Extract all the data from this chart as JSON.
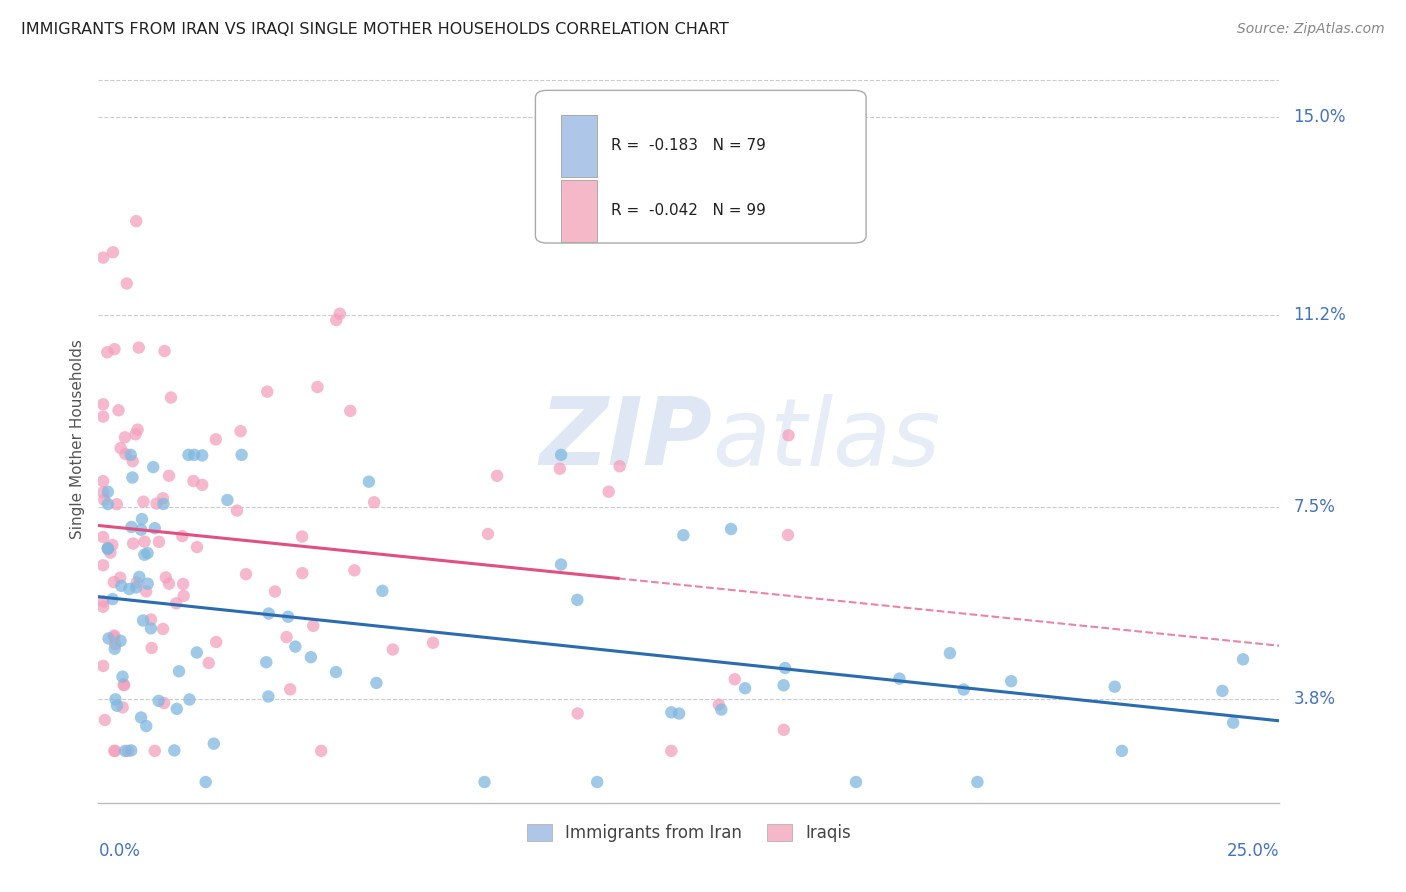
{
  "title": "IMMIGRANTS FROM IRAN VS IRAQI SINGLE MOTHER HOUSEHOLDS CORRELATION CHART",
  "source": "Source: ZipAtlas.com",
  "ylabel": "Single Mother Households",
  "x_min": 0.0,
  "x_max": 0.25,
  "y_min": 0.018,
  "y_max": 0.158,
  "ytick_labels": [
    "3.8%",
    "7.5%",
    "11.2%",
    "15.0%"
  ],
  "ytick_values": [
    0.038,
    0.075,
    0.112,
    0.15
  ],
  "legend_entries": [
    {
      "label": "R =  -0.183   N = 79",
      "color": "#aec6e8"
    },
    {
      "label": "R =  -0.042   N = 99",
      "color": "#f4b8c8"
    }
  ],
  "bottom_legend": [
    {
      "label": "Immigrants from Iran",
      "color": "#aec6e8"
    },
    {
      "label": "Iraqis",
      "color": "#f4b8c8"
    }
  ],
  "blue_dot_color": "#7fb8e0",
  "pink_dot_color": "#f4a0bc",
  "blue_line_color": "#2b6cb0",
  "pink_line_color": "#e05080",
  "pink_line_solid_xmax": 0.11,
  "watermark_zip": "ZIP",
  "watermark_atlas": "atlas",
  "iran_seed": 7,
  "iraq_seed": 13
}
